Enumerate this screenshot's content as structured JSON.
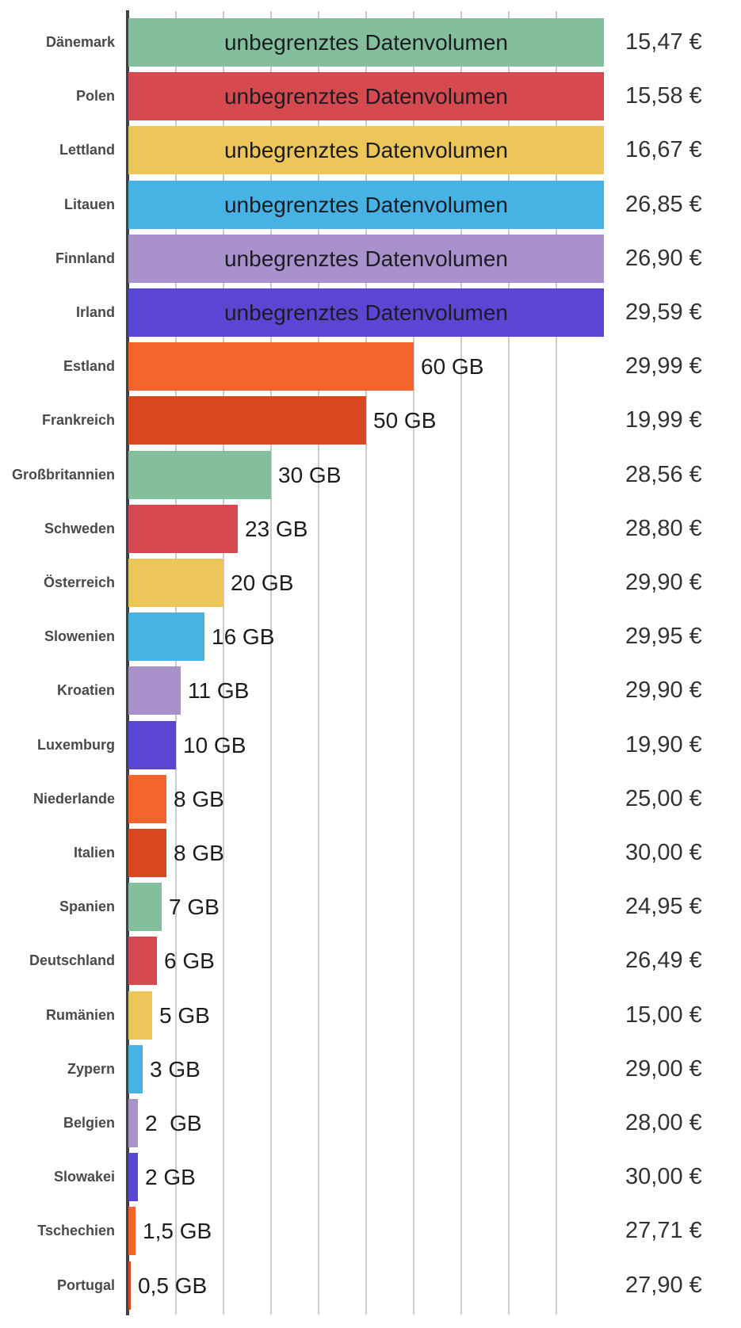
{
  "chart_data": {
    "type": "bar",
    "orientation": "horizontal",
    "title": "",
    "value_unit": "GB",
    "x_axis": {
      "min": 0,
      "max": 100,
      "gridline_step": 10,
      "gridlines": [
        10,
        20,
        30,
        40,
        50,
        60,
        70,
        80,
        90
      ],
      "tick_labels_visible": false,
      "grid_on": true
    },
    "legend": "none",
    "unlimited_label": "unbegrenztes Datenvolumen",
    "unlimited_plotted_value": 100,
    "palette": {
      "green": "#83BF9D",
      "red": "#D6494F",
      "yellow": "#EDC65A",
      "blue": "#47B2E4",
      "lilac": "#A992CC",
      "indigo": "#5A46D2",
      "orange": "#F3652C",
      "dark_orange": "#D8481E"
    },
    "rows": [
      {
        "country": "Dänemark",
        "data_volume_gb": null,
        "volume_label": "unbegrenztes Datenvolumen",
        "price_eur": 15.47,
        "price_label": "15,47 €",
        "color": "#83BF9D"
      },
      {
        "country": "Polen",
        "data_volume_gb": null,
        "volume_label": "unbegrenztes Datenvolumen",
        "price_eur": 15.58,
        "price_label": "15,58 €",
        "color": "#D6494F"
      },
      {
        "country": "Lettland",
        "data_volume_gb": null,
        "volume_label": "unbegrenztes Datenvolumen",
        "price_eur": 16.67,
        "price_label": "16,67 €",
        "color": "#EDC65A"
      },
      {
        "country": "Litauen",
        "data_volume_gb": null,
        "volume_label": "unbegrenztes Datenvolumen",
        "price_eur": 26.85,
        "price_label": "26,85 €",
        "color": "#47B2E4"
      },
      {
        "country": "Finnland",
        "data_volume_gb": null,
        "volume_label": "unbegrenztes Datenvolumen",
        "price_eur": 26.9,
        "price_label": "26,90 €",
        "color": "#A992CC"
      },
      {
        "country": "Irland",
        "data_volume_gb": null,
        "volume_label": "unbegrenztes Datenvolumen",
        "price_eur": 29.59,
        "price_label": "29,59 €",
        "color": "#5A46D2"
      },
      {
        "country": "Estland",
        "data_volume_gb": 60,
        "volume_label": "60 GB",
        "price_eur": 29.99,
        "price_label": "29,99 €",
        "color": "#F3652C"
      },
      {
        "country": "Frankreich",
        "data_volume_gb": 50,
        "volume_label": "50 GB",
        "price_eur": 19.99,
        "price_label": "19,99 €",
        "color": "#D8481E"
      },
      {
        "country": "Großbritannien",
        "data_volume_gb": 30,
        "volume_label": "30 GB",
        "price_eur": 28.56,
        "price_label": "28,56 €",
        "color": "#83BF9D"
      },
      {
        "country": "Schweden",
        "data_volume_gb": 23,
        "volume_label": "23 GB",
        "price_eur": 28.8,
        "price_label": "28,80 €",
        "color": "#D6494F"
      },
      {
        "country": "Österreich",
        "data_volume_gb": 20,
        "volume_label": "20 GB",
        "price_eur": 29.9,
        "price_label": "29,90 €",
        "color": "#EDC65A"
      },
      {
        "country": "Slowenien",
        "data_volume_gb": 16,
        "volume_label": "16 GB",
        "price_eur": 29.95,
        "price_label": "29,95 €",
        "color": "#47B2E4"
      },
      {
        "country": "Kroatien",
        "data_volume_gb": 11,
        "volume_label": "11 GB",
        "price_eur": 29.9,
        "price_label": "29,90 €",
        "color": "#A992CC"
      },
      {
        "country": "Luxemburg",
        "data_volume_gb": 10,
        "volume_label": "10 GB",
        "price_eur": 19.9,
        "price_label": "19,90 €",
        "color": "#5A46D2"
      },
      {
        "country": "Niederlande",
        "data_volume_gb": 8,
        "volume_label": "8 GB",
        "price_eur": 25.0,
        "price_label": "25,00 €",
        "color": "#F3652C"
      },
      {
        "country": "Italien",
        "data_volume_gb": 8,
        "volume_label": "8 GB",
        "price_eur": 30.0,
        "price_label": "30,00 €",
        "color": "#D8481E"
      },
      {
        "country": "Spanien",
        "data_volume_gb": 7,
        "volume_label": "7 GB",
        "price_eur": 24.95,
        "price_label": "24,95 €",
        "color": "#83BF9D"
      },
      {
        "country": "Deutschland",
        "data_volume_gb": 6,
        "volume_label": "6 GB",
        "price_eur": 26.49,
        "price_label": "26,49 €",
        "color": "#D6494F"
      },
      {
        "country": "Rumänien",
        "data_volume_gb": 5,
        "volume_label": "5 GB",
        "price_eur": 15.0,
        "price_label": "15,00 €",
        "color": "#EDC65A"
      },
      {
        "country": "Zypern",
        "data_volume_gb": 3,
        "volume_label": "3 GB",
        "price_eur": 29.0,
        "price_label": "29,00 €",
        "color": "#47B2E4"
      },
      {
        "country": "Belgien",
        "data_volume_gb": 2,
        "volume_label": "2  GB",
        "price_eur": 28.0,
        "price_label": "28,00 €",
        "color": "#A992CC"
      },
      {
        "country": "Slowakei",
        "data_volume_gb": 2,
        "volume_label": "2 GB",
        "price_eur": 30.0,
        "price_label": "30,00 €",
        "color": "#5A46D2"
      },
      {
        "country": "Tschechien",
        "data_volume_gb": 1.5,
        "volume_label": "1,5 GB",
        "price_eur": 27.71,
        "price_label": "27,71 €",
        "color": "#F3652C"
      },
      {
        "country": "Portugal",
        "data_volume_gb": 0.5,
        "volume_label": "0,5 GB",
        "price_eur": 27.9,
        "price_label": "27,90 €",
        "color": "#D8481E"
      }
    ]
  }
}
